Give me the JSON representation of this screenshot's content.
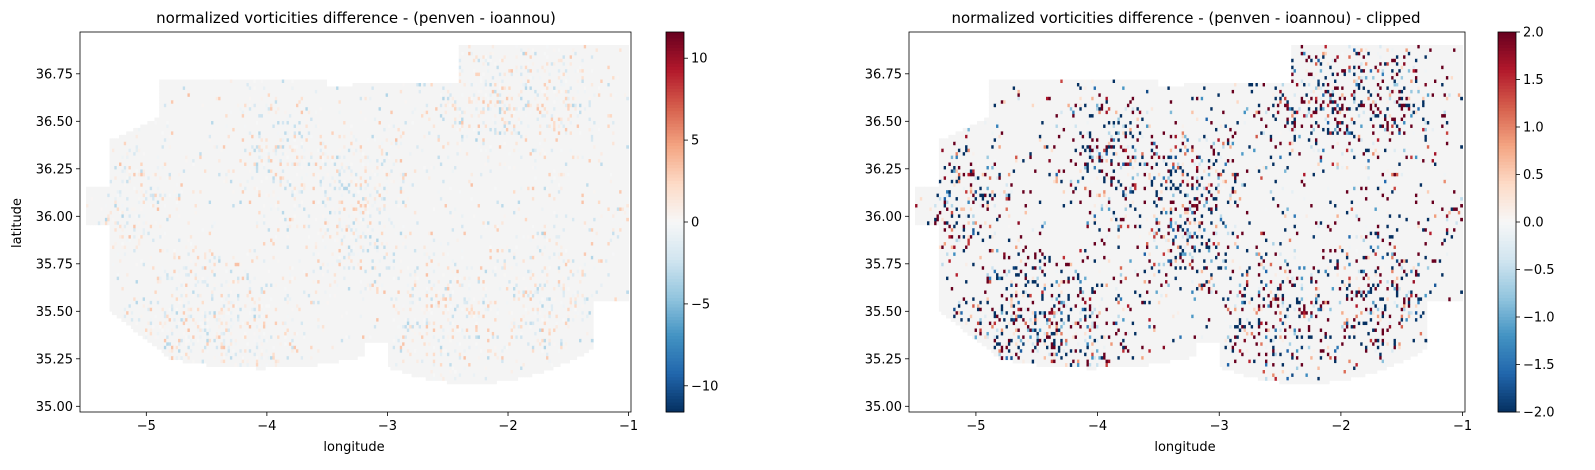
{
  "chart_data": [
    {
      "type": "heatmap",
      "title": "normalized vorticities difference - (penven - ioannou)",
      "xlabel": "longitude",
      "ylabel": "latitude",
      "xlim": [
        -5.55,
        -0.98
      ],
      "ylim": [
        34.97,
        36.97
      ],
      "x_ticks": [
        -5,
        -4,
        -3,
        -2,
        -1
      ],
      "x_tick_labels": [
        "−5",
        "−4",
        "−3",
        "−2",
        "−1"
      ],
      "y_ticks": [
        35.0,
        35.25,
        35.5,
        35.75,
        36.0,
        36.25,
        36.5,
        36.75
      ],
      "y_tick_labels": [
        "35.00",
        "35.25",
        "35.50",
        "35.75",
        "36.00",
        "36.25",
        "36.50",
        "36.75"
      ],
      "colormap": "RdBu_r",
      "colorbar": {
        "vmin": -11.6,
        "vmax": 11.6,
        "ticks": [
          -10,
          -5,
          0,
          5,
          10
        ],
        "tick_labels": [
          "−10",
          "−5",
          "0",
          "5",
          "10"
        ]
      },
      "clipped": false,
      "noise_scale": 1.2
    },
    {
      "type": "heatmap",
      "title": "normalized vorticities difference - (penven - ioannou) - clipped",
      "xlabel": "longitude",
      "ylabel": "",
      "xlim": [
        -5.55,
        -0.98
      ],
      "ylim": [
        34.97,
        36.97
      ],
      "x_ticks": [
        -5,
        -4,
        -3,
        -2,
        -1
      ],
      "x_tick_labels": [
        "−5",
        "−4",
        "−3",
        "−2",
        "−1"
      ],
      "y_ticks": [
        35.0,
        35.25,
        35.5,
        35.75,
        36.0,
        36.25,
        36.5,
        36.75
      ],
      "y_tick_labels": [
        "35.00",
        "35.25",
        "35.50",
        "35.75",
        "36.00",
        "36.25",
        "36.50",
        "36.75"
      ],
      "colormap": "RdBu_r",
      "colorbar": {
        "vmin": -2.0,
        "vmax": 2.0,
        "ticks": [
          -2.0,
          -1.5,
          -1.0,
          -0.5,
          0.0,
          0.5,
          1.0,
          1.5,
          2.0
        ],
        "tick_labels": [
          "−2.0",
          "−1.5",
          "−1.0",
          "−0.5",
          "0.0",
          "0.5",
          "1.0",
          "1.5",
          "2.0"
        ]
      },
      "clipped": true,
      "noise_scale": 1.0
    }
  ],
  "colors": {
    "background_cell": "#f4f4f4",
    "cmap_stops": [
      "#053061",
      "#2166ac",
      "#4393c3",
      "#92c5de",
      "#d1e5f0",
      "#f7f7f7",
      "#fddbc7",
      "#f4a582",
      "#d6604d",
      "#b2182b",
      "#67001f"
    ]
  }
}
